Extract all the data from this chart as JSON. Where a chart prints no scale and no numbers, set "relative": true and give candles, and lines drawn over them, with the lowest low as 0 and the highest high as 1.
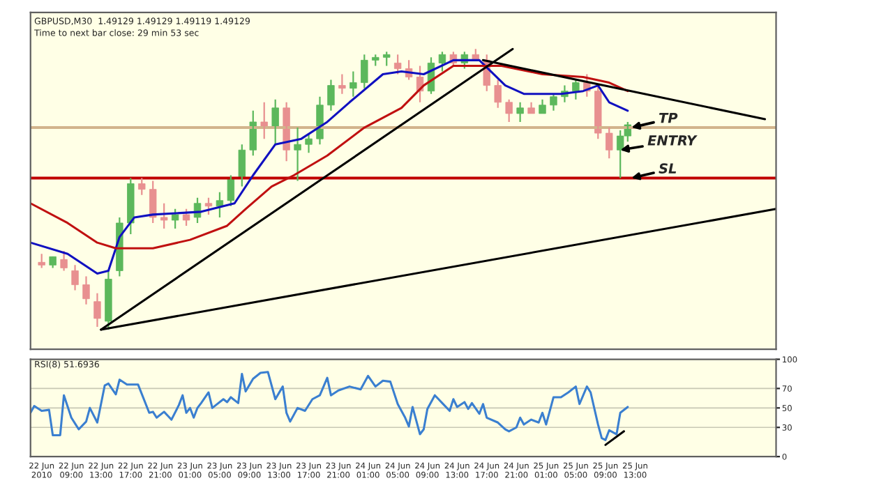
{
  "chart_data": [
    {
      "type": "candlestick",
      "title": "GBPUSD,M30  1.49129 1.49129 1.49119 1.49129",
      "subtitle": "Time to next bar close: 29 min 53 sec",
      "relative": true,
      "legend": false,
      "xlim": [
        "2010-06-22T03:30",
        "2010-06-26T08:00"
      ],
      "x": [
        "2010-06-22T05:00",
        "2010-06-22T06:30",
        "2010-06-22T08:00",
        "2010-06-22T09:30",
        "2010-06-22T11:00",
        "2010-06-22T12:30",
        "2010-06-22T14:00",
        "2010-06-22T15:30",
        "2010-06-22T17:00",
        "2010-06-22T18:30",
        "2010-06-22T20:00",
        "2010-06-22T21:30",
        "2010-06-22T23:00",
        "2010-06-23T00:30",
        "2010-06-23T02:00",
        "2010-06-23T03:30",
        "2010-06-23T05:00",
        "2010-06-23T06:30",
        "2010-06-23T08:00",
        "2010-06-23T09:30",
        "2010-06-23T11:00",
        "2010-06-23T12:30",
        "2010-06-23T14:00",
        "2010-06-23T15:30",
        "2010-06-23T17:00",
        "2010-06-23T18:30",
        "2010-06-23T20:00",
        "2010-06-23T21:30",
        "2010-06-23T23:00",
        "2010-06-24T00:30",
        "2010-06-24T02:00",
        "2010-06-24T03:30",
        "2010-06-24T05:00",
        "2010-06-24T06:30",
        "2010-06-24T08:00",
        "2010-06-24T09:30",
        "2010-06-24T11:00",
        "2010-06-24T12:30",
        "2010-06-24T14:00",
        "2010-06-24T15:30",
        "2010-06-24T17:00",
        "2010-06-24T18:30",
        "2010-06-24T20:00",
        "2010-06-24T21:30",
        "2010-06-24T23:00",
        "2010-06-25T00:30",
        "2010-06-25T02:00",
        "2010-06-25T03:30",
        "2010-06-25T05:00",
        "2010-06-25T06:30",
        "2010-06-25T08:00",
        "2010-06-25T09:30",
        "2010-06-25T11:00",
        "2010-06-25T12:00"
      ],
      "ohlc": [
        [
          0.24,
          0.27,
          0.22,
          0.23
        ],
        [
          0.23,
          0.26,
          0.22,
          0.26
        ],
        [
          0.25,
          0.28,
          0.21,
          0.22
        ],
        [
          0.21,
          0.23,
          0.14,
          0.16
        ],
        [
          0.16,
          0.19,
          0.09,
          0.11
        ],
        [
          0.1,
          0.13,
          0.01,
          0.04
        ],
        [
          0.03,
          0.21,
          0,
          0.18
        ],
        [
          0.21,
          0.4,
          0.19,
          0.38
        ],
        [
          0.38,
          0.54,
          0.34,
          0.52
        ],
        [
          0.52,
          0.54,
          0.48,
          0.5
        ],
        [
          0.5,
          0.53,
          0.38,
          0.4
        ],
        [
          0.4,
          0.45,
          0.36,
          0.39
        ],
        [
          0.39,
          0.43,
          0.36,
          0.41
        ],
        [
          0.41,
          0.43,
          0.37,
          0.39
        ],
        [
          0.4,
          0.47,
          0.38,
          0.45
        ],
        [
          0.45,
          0.47,
          0.41,
          0.44
        ],
        [
          0.44,
          0.49,
          0.4,
          0.46
        ],
        [
          0.46,
          0.55,
          0.44,
          0.54
        ],
        [
          0.54,
          0.66,
          0.51,
          0.64
        ],
        [
          0.64,
          0.78,
          0.62,
          0.74
        ],
        [
          0.74,
          0.81,
          0.68,
          0.72
        ],
        [
          0.72,
          0.82,
          0.66,
          0.79
        ],
        [
          0.79,
          0.81,
          0.6,
          0.64
        ],
        [
          0.64,
          0.72,
          0.53,
          0.66
        ],
        [
          0.66,
          0.7,
          0.63,
          0.68
        ],
        [
          0.68,
          0.83,
          0.66,
          0.8
        ],
        [
          0.8,
          0.89,
          0.78,
          0.87
        ],
        [
          0.87,
          0.91,
          0.84,
          0.86
        ],
        [
          0.86,
          0.92,
          0.83,
          0.88
        ],
        [
          0.88,
          0.98,
          0.86,
          0.96
        ],
        [
          0.96,
          0.98,
          0.94,
          0.97
        ],
        [
          0.97,
          0.99,
          0.94,
          0.98
        ],
        [
          0.95,
          0.98,
          0.91,
          0.93
        ],
        [
          0.93,
          0.96,
          0.89,
          0.9
        ],
        [
          0.9,
          0.94,
          0.81,
          0.85
        ],
        [
          0.85,
          0.97,
          0.84,
          0.95
        ],
        [
          0.95,
          0.99,
          0.92,
          0.98
        ],
        [
          0.98,
          0.99,
          0.94,
          0.95
        ],
        [
          0.95,
          0.99,
          0.93,
          0.98
        ],
        [
          0.98,
          1.0,
          0.96,
          0.96
        ],
        [
          0.96,
          0.98,
          0.85,
          0.87
        ],
        [
          0.87,
          0.89,
          0.79,
          0.81
        ],
        [
          0.81,
          0.82,
          0.74,
          0.77
        ],
        [
          0.77,
          0.81,
          0.74,
          0.79
        ],
        [
          0.79,
          0.81,
          0.77,
          0.77
        ],
        [
          0.77,
          0.82,
          0.77,
          0.8
        ],
        [
          0.8,
          0.84,
          0.78,
          0.83
        ],
        [
          0.83,
          0.87,
          0.81,
          0.85
        ],
        [
          0.85,
          0.89,
          0.82,
          0.88
        ],
        [
          0.88,
          0.91,
          0.83,
          0.85
        ],
        [
          0.85,
          0.87,
          0.68,
          0.7
        ],
        [
          0.7,
          0.72,
          0.61,
          0.64
        ],
        [
          0.64,
          0.71,
          0.54,
          0.69
        ],
        [
          0.69,
          0.74,
          0.67,
          0.73
        ]
      ],
      "series": [
        {
          "type": "line",
          "color": "#1010c0",
          "x": [
            "2010-06-22T03:30",
            "2010-06-22T08:30",
            "2010-06-22T12:30",
            "2010-06-22T14:00",
            "2010-06-22T15:30",
            "2010-06-22T17:30",
            "2010-06-22T20:00",
            "2010-06-23T02:30",
            "2010-06-23T07:00",
            "2010-06-23T09:30",
            "2010-06-23T12:30",
            "2010-06-23T16:00",
            "2010-06-23T19:30",
            "2010-06-23T22:30",
            "2010-06-24T03:00",
            "2010-06-24T05:30",
            "2010-06-24T08:30",
            "2010-06-24T12:30",
            "2010-06-24T16:00",
            "2010-06-24T19:30",
            "2010-06-24T22:00",
            "2010-06-25T03:00",
            "2010-06-25T06:00",
            "2010-06-25T08:00",
            "2010-06-25T09:30",
            "2010-06-25T12:00"
          ],
          "values": [
            0.31,
            0.27,
            0.2,
            0.21,
            0.33,
            0.4,
            0.41,
            0.42,
            0.45,
            0.55,
            0.66,
            0.68,
            0.74,
            0.81,
            0.91,
            0.92,
            0.91,
            0.96,
            0.96,
            0.87,
            0.84,
            0.84,
            0.85,
            0.87,
            0.81,
            0.78
          ]
        },
        {
          "type": "line",
          "color": "#c01010",
          "x": [
            "2010-06-22T03:30",
            "2010-06-22T08:30",
            "2010-06-22T12:30",
            "2010-06-22T15:00",
            "2010-06-22T20:00",
            "2010-06-23T01:00",
            "2010-06-23T06:00",
            "2010-06-23T08:30",
            "2010-06-23T12:00",
            "2010-06-23T15:00",
            "2010-06-23T19:30",
            "2010-06-24T00:30",
            "2010-06-24T05:30",
            "2010-06-24T08:30",
            "2010-06-24T12:30",
            "2010-06-24T19:00",
            "2010-06-25T00:30",
            "2010-06-25T06:00",
            "2010-06-25T09:30",
            "2010-06-25T12:00"
          ],
          "values": [
            0.45,
            0.38,
            0.31,
            0.29,
            0.29,
            0.32,
            0.37,
            0.43,
            0.51,
            0.55,
            0.62,
            0.72,
            0.79,
            0.87,
            0.94,
            0.94,
            0.91,
            0.9,
            0.88,
            0.85
          ]
        },
        {
          "type": "line",
          "color": "#000000",
          "x": [
            "2010-06-22T13:00",
            "2010-06-24T20:30"
          ],
          "values": [
            0,
            1.0
          ]
        },
        {
          "type": "line",
          "color": "#000000",
          "x": [
            "2010-06-22T13:00",
            "2010-06-26T08:00"
          ],
          "values": [
            0,
            0.43
          ]
        },
        {
          "type": "line",
          "color": "#000000",
          "x": [
            "2010-06-24T16:30",
            "2010-06-26T06:30"
          ],
          "values": [
            0.96,
            0.75
          ]
        }
      ],
      "ref_lines": [
        {
          "axis": "y",
          "value": 0.72,
          "color": "#d2b48c"
        },
        {
          "axis": "y",
          "value": 0.54,
          "color": "#c00000"
        }
      ],
      "annotations": [
        {
          "text": "TP",
          "x": "2010-06-25T12:30",
          "y": 0.72
        },
        {
          "text": "ENTRY",
          "x": "2010-06-25T11:00",
          "y": 0.64
        },
        {
          "text": "SL",
          "x": "2010-06-25T12:30",
          "y": 0.54
        }
      ]
    },
    {
      "type": "line",
      "title": "RSI(8) 51.6936",
      "legend": false,
      "grid": "y",
      "marker": "none",
      "line_style": "solid",
      "xlim": [
        "2010-06-22T03:30",
        "2010-06-26T08:00"
      ],
      "ylim": [
        0,
        100
      ],
      "yticks": [
        0,
        30,
        50,
        70,
        100
      ],
      "xticks": [
        {
          "value": "2010-06-22T05:00",
          "label": "22 Jun 2010"
        },
        {
          "value": "2010-06-22T09:00",
          "label": "22 Jun 09:00"
        },
        {
          "value": "2010-06-22T13:00",
          "label": "22 Jun 13:00"
        },
        {
          "value": "2010-06-22T17:00",
          "label": "22 Jun 17:00"
        },
        {
          "value": "2010-06-22T21:00",
          "label": "22 Jun 21:00"
        },
        {
          "value": "2010-06-23T01:00",
          "label": "23 Jun 01:00"
        },
        {
          "value": "2010-06-23T05:00",
          "label": "23 Jun 05:00"
        },
        {
          "value": "2010-06-23T09:00",
          "label": "23 Jun 09:00"
        },
        {
          "value": "2010-06-23T13:00",
          "label": "23 Jun 13:00"
        },
        {
          "value": "2010-06-23T17:00",
          "label": "23 Jun 17:00"
        },
        {
          "value": "2010-06-23T21:00",
          "label": "23 Jun 21:00"
        },
        {
          "value": "2010-06-24T01:00",
          "label": "24 Jun 01:00"
        },
        {
          "value": "2010-06-24T05:00",
          "label": "24 Jun 05:00"
        },
        {
          "value": "2010-06-24T09:00",
          "label": "24 Jun 09:00"
        },
        {
          "value": "2010-06-24T13:00",
          "label": "24 Jun 13:00"
        },
        {
          "value": "2010-06-24T17:00",
          "label": "24 Jun 17:00"
        },
        {
          "value": "2010-06-24T21:00",
          "label": "24 Jun 21:00"
        },
        {
          "value": "2010-06-25T01:00",
          "label": "25 Jun 01:00"
        },
        {
          "value": "2010-06-25T05:00",
          "label": "25 Jun 05:00"
        },
        {
          "value": "2010-06-25T09:00",
          "label": "25 Jun 09:00"
        },
        {
          "value": "2010-06-25T13:00",
          "label": "25 Jun 13:00"
        }
      ],
      "series": [
        {
          "color": "#3a7fd0",
          "x": [
            "2010-06-22T03:30",
            "2010-06-22T04:00",
            "2010-06-22T05:00",
            "2010-06-22T06:00",
            "2010-06-22T06:30",
            "2010-06-22T07:30",
            "2010-06-22T08:00",
            "2010-06-22T09:00",
            "2010-06-22T09:30",
            "2010-06-22T10:00",
            "2010-06-22T11:00",
            "2010-06-22T11:30",
            "2010-06-22T12:30",
            "2010-06-22T13:30",
            "2010-06-22T14:00",
            "2010-06-22T15:00",
            "2010-06-22T15:30",
            "2010-06-22T16:30",
            "2010-06-22T18:00",
            "2010-06-22T19:30",
            "2010-06-22T20:00",
            "2010-06-22T20:30",
            "2010-06-22T21:30",
            "2010-06-22T22:00",
            "2010-06-22T22:30",
            "2010-06-22T23:30",
            "2010-06-23T00:00",
            "2010-06-23T00:30",
            "2010-06-23T01:00",
            "2010-06-23T01:30",
            "2010-06-23T02:00",
            "2010-06-23T02:30",
            "2010-06-23T03:30",
            "2010-06-23T04:00",
            "2010-06-23T04:30",
            "2010-06-23T05:30",
            "2010-06-23T06:00",
            "2010-06-23T06:30",
            "2010-06-23T07:30",
            "2010-06-23T08:00",
            "2010-06-23T08:30",
            "2010-06-23T09:30",
            "2010-06-23T10:30",
            "2010-06-23T11:30",
            "2010-06-23T12:30",
            "2010-06-23T13:30",
            "2010-06-23T14:00",
            "2010-06-23T14:30",
            "2010-06-23T15:30",
            "2010-06-23T16:30",
            "2010-06-23T17:30",
            "2010-06-23T18:30",
            "2010-06-23T19:30",
            "2010-06-23T20:00",
            "2010-06-23T21:00",
            "2010-06-23T22:30",
            "2010-06-24T00:00",
            "2010-06-24T01:00",
            "2010-06-24T02:00",
            "2010-06-24T03:00",
            "2010-06-24T04:00",
            "2010-06-24T05:00",
            "2010-06-24T06:00",
            "2010-06-24T06:30",
            "2010-06-24T07:00",
            "2010-06-24T08:00",
            "2010-06-24T08:30",
            "2010-06-24T09:00",
            "2010-06-24T10:00",
            "2010-06-24T10:30",
            "2010-06-24T11:00",
            "2010-06-24T12:00",
            "2010-06-24T12:30",
            "2010-06-24T13:00",
            "2010-06-24T14:00",
            "2010-06-24T14:30",
            "2010-06-24T15:00",
            "2010-06-24T16:00",
            "2010-06-24T16:30",
            "2010-06-24T17:00",
            "2010-06-24T18:30",
            "2010-06-24T19:30",
            "2010-06-24T20:00",
            "2010-06-24T21:00",
            "2010-06-24T21:30",
            "2010-06-24T22:00",
            "2010-06-24T23:00",
            "2010-06-25T00:00",
            "2010-06-25T00:30",
            "2010-06-25T01:00",
            "2010-06-25T02:00",
            "2010-06-25T03:00",
            "2010-06-25T04:00",
            "2010-06-25T05:00",
            "2010-06-25T05:30",
            "2010-06-25T06:30",
            "2010-06-25T07:00",
            "2010-06-25T08:00",
            "2010-06-25T08:30",
            "2010-06-25T09:00",
            "2010-06-25T09:30",
            "2010-06-25T10:30",
            "2010-06-25T11:00",
            "2010-06-25T12:00"
          ],
          "values": [
            45,
            52,
            47,
            48,
            22,
            22,
            63,
            40,
            34,
            28,
            36,
            50,
            35,
            73,
            75,
            64,
            79,
            74,
            74,
            45,
            46,
            40,
            46,
            42,
            38,
            53,
            63,
            45,
            50,
            40,
            50,
            55,
            66,
            50,
            53,
            59,
            56,
            61,
            55,
            85,
            67,
            80,
            86,
            87,
            59,
            72,
            45,
            36,
            50,
            47,
            59,
            63,
            81,
            63,
            68,
            72,
            69,
            83,
            72,
            78,
            77,
            54,
            40,
            31,
            51,
            23,
            28,
            49,
            63,
            59,
            55,
            47,
            59,
            51,
            56,
            49,
            55,
            44,
            54,
            40,
            35,
            28,
            26,
            30,
            40,
            33,
            38,
            35,
            45,
            33,
            61,
            61,
            66,
            72,
            54,
            72,
            66,
            33,
            19,
            17,
            27,
            23,
            45,
            51
          ]
        },
        {
          "color": "#000000",
          "x": [
            "2010-06-25T09:00",
            "2010-06-25T11:30"
          ],
          "values": [
            12,
            26
          ]
        }
      ]
    }
  ]
}
